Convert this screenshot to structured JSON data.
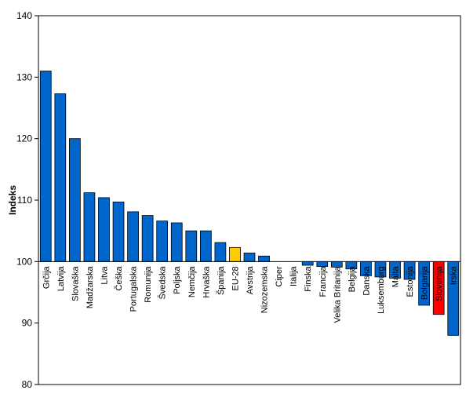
{
  "chart_data": {
    "type": "bar",
    "title": "",
    "xlabel": "",
    "ylabel": "Indeks",
    "ylim": [
      80,
      140
    ],
    "yticks": [
      80,
      90,
      100,
      110,
      120,
      130,
      140
    ],
    "baseline": 100,
    "grid": false,
    "legend": "none",
    "categories": [
      "Grčija",
      "Latvija",
      "Slovaška",
      "Madžarska",
      "Litva",
      "Češka",
      "Portugalska",
      "Romunija",
      "Švedska",
      "Poljska",
      "Nemčija",
      "Hrvaška",
      "Španija",
      "EU-28",
      "Avstrija",
      "Nizozemska",
      "Ciper",
      "Italija",
      "Finska",
      "Francija",
      "Velika Britanija",
      "Belgija",
      "Danska",
      "Luksemburg",
      "Malta",
      "Estonija",
      "Bolgarija",
      "Slovenija",
      "Irska"
    ],
    "values": [
      131.0,
      127.3,
      120.0,
      111.2,
      110.4,
      109.7,
      108.1,
      107.5,
      106.6,
      106.3,
      105.0,
      105.0,
      103.1,
      102.3,
      101.4,
      100.9,
      100.0,
      100.0,
      99.4,
      99.2,
      99.1,
      98.8,
      97.7,
      97.5,
      97.3,
      97.1,
      92.9,
      91.4,
      88.0
    ],
    "colors": {
      "default": "#0066cc",
      "highlight_eu": "#ffcc00",
      "highlight_country": "#ff0000",
      "stroke": "#000000"
    },
    "highlights": {
      "EU-28": "highlight_eu",
      "Slovenija": "highlight_country"
    }
  }
}
